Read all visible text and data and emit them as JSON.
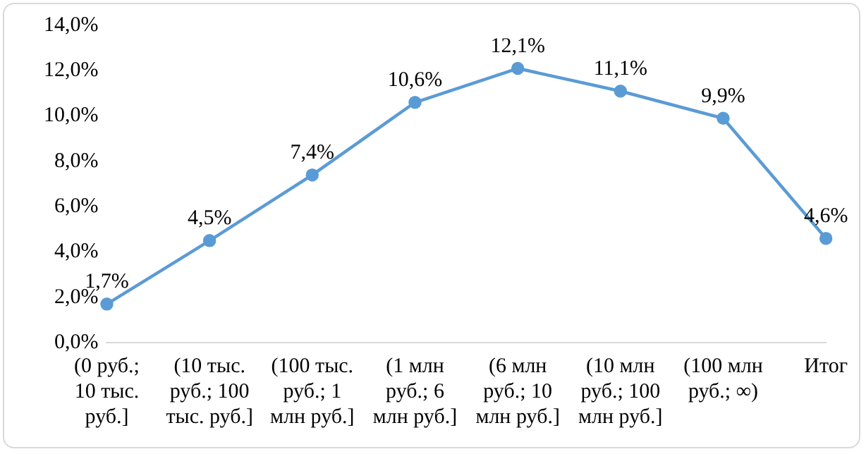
{
  "chart_data": {
    "type": "line",
    "categories": [
      "(0 руб.; 10 тыс. руб.]",
      "(10 тыс. руб.; 100 тыс. руб.]",
      "(100 тыс. руб.; 1 млн руб.]",
      "(1 млн руб.; 6 млн руб.]",
      "(6 млн руб.; 10 млн руб.]",
      "(10 млн руб.; 100 млн руб.]",
      "(100 млн руб.; ∞)",
      "Итог"
    ],
    "series": [
      {
        "color": "#5b9bd5",
        "values": [
          1.7,
          4.5,
          7.4,
          10.6,
          12.1,
          11.1,
          9.9,
          4.6
        ],
        "value_labels": [
          "1,7%",
          "4,5%",
          "7,4%",
          "10,6%",
          "12,1%",
          "11,1%",
          "9,9%",
          "4,6%"
        ]
      }
    ],
    "ylim": [
      0,
      14
    ],
    "yticks": [
      {
        "value": 0,
        "label": "0,0%"
      },
      {
        "value": 2,
        "label": "2,0%"
      },
      {
        "value": 4,
        "label": "4,0%"
      },
      {
        "value": 6,
        "label": "6,0%"
      },
      {
        "value": 8,
        "label": "8,0%"
      },
      {
        "value": 10,
        "label": "10,0%"
      },
      {
        "value": 12,
        "label": "12,0%"
      },
      {
        "value": 14,
        "label": "14,0%"
      }
    ],
    "grid": false,
    "legend": false,
    "marker": "circle",
    "line_style": "solid"
  }
}
